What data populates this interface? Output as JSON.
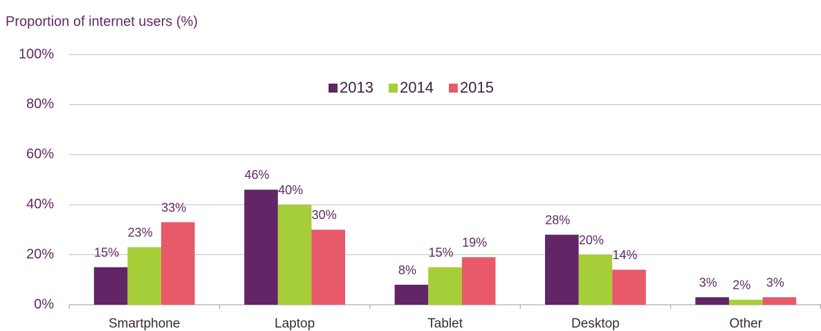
{
  "chart_data": {
    "type": "bar",
    "y_label": "Proportion of internet users (%)",
    "categories": [
      "Smartphone",
      "Laptop",
      "Tablet",
      "Desktop",
      "Other"
    ],
    "series": [
      {
        "name": "2013",
        "color": "#622566",
        "values": [
          15,
          46,
          8,
          28,
          3
        ],
        "value_labels": [
          "15%",
          "46%",
          "8%",
          "28%",
          "3%"
        ]
      },
      {
        "name": "2014",
        "color": "#a6ce39",
        "values": [
          23,
          40,
          15,
          20,
          2
        ],
        "value_labels": [
          "23%",
          "40%",
          "15%",
          "20%",
          "2%"
        ]
      },
      {
        "name": "2015",
        "color": "#e85a6a",
        "values": [
          33,
          30,
          19,
          14,
          3
        ],
        "value_labels": [
          "33%",
          "30%",
          "19%",
          "14%",
          "3%"
        ]
      }
    ],
    "ylim": [
      0,
      100
    ],
    "yticks": [
      {
        "value": 0,
        "label": "0%"
      },
      {
        "value": 20,
        "label": "20%"
      },
      {
        "value": 40,
        "label": "40%"
      },
      {
        "value": 60,
        "label": "60%"
      },
      {
        "value": 80,
        "label": "80%"
      },
      {
        "value": 100,
        "label": "100%"
      }
    ],
    "grid": true,
    "legend": "top"
  }
}
